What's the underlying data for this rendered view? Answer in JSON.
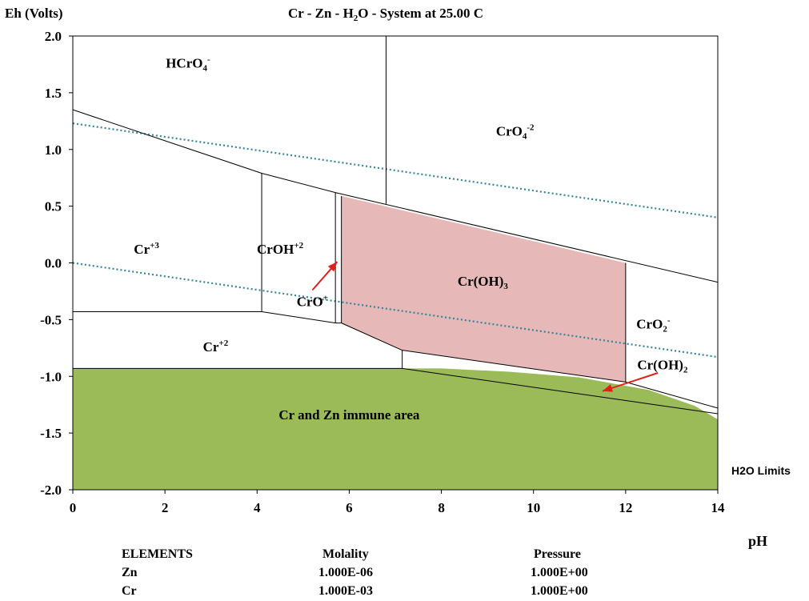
{
  "chart_data": {
    "type": "pourbaix-diagram",
    "title": {
      "pre": "Cr - Zn - H",
      "sub": "2",
      "post": "O - System at 25.00 C"
    },
    "ylabel": "Eh (Volts)",
    "xlabel": "pH",
    "xlim": [
      0,
      14
    ],
    "ylim": [
      -2.0,
      2.0
    ],
    "xticks": [
      0,
      2,
      4,
      6,
      8,
      10,
      12,
      14
    ],
    "yticks": [
      2.0,
      1.5,
      1.0,
      0.5,
      0.0,
      -0.5,
      -1.0,
      -1.5,
      -2.0
    ],
    "ytick_labels": [
      "2.0",
      "1.5",
      "1.0",
      "0.5",
      "0.0",
      "-0.5",
      "-1.0",
      "-1.5",
      "-2.0"
    ],
    "colors": {
      "immune_fill": "#9bbb59",
      "cr_oh3_fill": "#e6b9b8",
      "water_line": "#31859c",
      "arrow": "#e0211a",
      "boundary": "#000000"
    },
    "regions": [
      {
        "id": "immune",
        "label": "Cr and Zn immune area",
        "polygon": [
          [
            0,
            -2.0
          ],
          [
            0,
            -0.93
          ],
          [
            8.0,
            -0.93
          ],
          [
            9.5,
            -0.96
          ],
          [
            11.0,
            -1.01
          ],
          [
            12.5,
            -1.12
          ],
          [
            13.5,
            -1.26
          ],
          [
            14,
            -1.38
          ],
          [
            14,
            -2.0
          ]
        ]
      },
      {
        "id": "croh3",
        "label": "Cr(OH)",
        "polygon": [
          [
            5.83,
            0.59
          ],
          [
            12.0,
            0.0
          ],
          [
            12.0,
            -1.05
          ],
          [
            7.15,
            -0.77
          ],
          [
            5.83,
            -0.53
          ]
        ]
      }
    ],
    "boundaries": [
      [
        [
          0,
          1.35
        ],
        [
          4.1,
          0.79
        ]
      ],
      [
        [
          4.1,
          0.79
        ],
        [
          5.7,
          0.62
        ]
      ],
      [
        [
          5.7,
          0.62
        ],
        [
          14,
          -0.17
        ]
      ],
      [
        [
          6.8,
          2.0
        ],
        [
          6.8,
          0.52
        ]
      ],
      [
        [
          4.1,
          0.79
        ],
        [
          4.1,
          -0.43
        ]
      ],
      [
        [
          5.7,
          0.62
        ],
        [
          5.7,
          -0.53
        ]
      ],
      [
        [
          5.83,
          0.59
        ],
        [
          5.83,
          -0.53
        ]
      ],
      [
        [
          0,
          -0.43
        ],
        [
          4.1,
          -0.43
        ]
      ],
      [
        [
          4.1,
          -0.43
        ],
        [
          5.7,
          -0.53
        ]
      ],
      [
        [
          5.7,
          -0.53
        ],
        [
          5.83,
          -0.53
        ]
      ],
      [
        [
          5.83,
          -0.53
        ],
        [
          7.15,
          -0.77
        ]
      ],
      [
        [
          7.15,
          -0.77
        ],
        [
          12.0,
          -1.05
        ]
      ],
      [
        [
          12.0,
          0.0
        ],
        [
          12.0,
          -1.05
        ]
      ],
      [
        [
          7.15,
          -0.77
        ],
        [
          7.15,
          -0.93
        ]
      ],
      [
        [
          0,
          -0.93
        ],
        [
          7.15,
          -0.93
        ]
      ],
      [
        [
          7.15,
          -0.93
        ],
        [
          14,
          -1.33
        ]
      ],
      [
        [
          12.0,
          -1.05
        ],
        [
          14,
          -1.28
        ]
      ]
    ],
    "water_lines": [
      [
        [
          0,
          1.23
        ],
        [
          14,
          0.4
        ]
      ],
      [
        [
          0,
          0.0
        ],
        [
          14,
          -0.83
        ]
      ]
    ],
    "species_labels": [
      {
        "base": "HCrO",
        "sub": "4",
        "sup": "-",
        "x": 2.5,
        "y": 1.72
      },
      {
        "base": "CrO",
        "sub": "4",
        "sup": "-2",
        "x": 9.6,
        "y": 1.12
      },
      {
        "base": "Cr",
        "sub": "",
        "sup": "+3",
        "x": 1.6,
        "y": 0.08
      },
      {
        "base": "CrOH",
        "sub": "",
        "sup": "+2",
        "x": 4.5,
        "y": 0.08
      },
      {
        "base": "CrO",
        "sub": "",
        "sup": "+",
        "x": 5.2,
        "y": -0.38
      },
      {
        "base": "Cr(OH)",
        "sub": "3",
        "sup": "",
        "x": 8.9,
        "y": -0.2
      },
      {
        "base": "CrO",
        "sub": "2",
        "sup": "-",
        "x": 12.6,
        "y": -0.58
      },
      {
        "base": "Cr",
        "sub": "",
        "sup": "+2",
        "x": 3.1,
        "y": -0.78
      },
      {
        "base": "Cr(OH)",
        "sub": "2",
        "sup": "",
        "x": 12.8,
        "y": -0.94
      }
    ],
    "immune_label_pos": {
      "x": 6.0,
      "y": -1.38
    },
    "arrows": [
      {
        "from": [
          5.2,
          -0.24
        ],
        "to": [
          5.74,
          0.01
        ]
      },
      {
        "from": [
          12.7,
          -0.97
        ],
        "to": [
          11.5,
          -1.13
        ]
      }
    ],
    "water_limits_label": "H2O Limits"
  },
  "footer": {
    "headers": [
      "ELEMENTS",
      "Molality",
      "Pressure"
    ],
    "rows": [
      [
        "Zn",
        "1.000E-06",
        "1.000E+00"
      ],
      [
        "Cr",
        "1.000E-03",
        "1.000E+00"
      ]
    ]
  }
}
